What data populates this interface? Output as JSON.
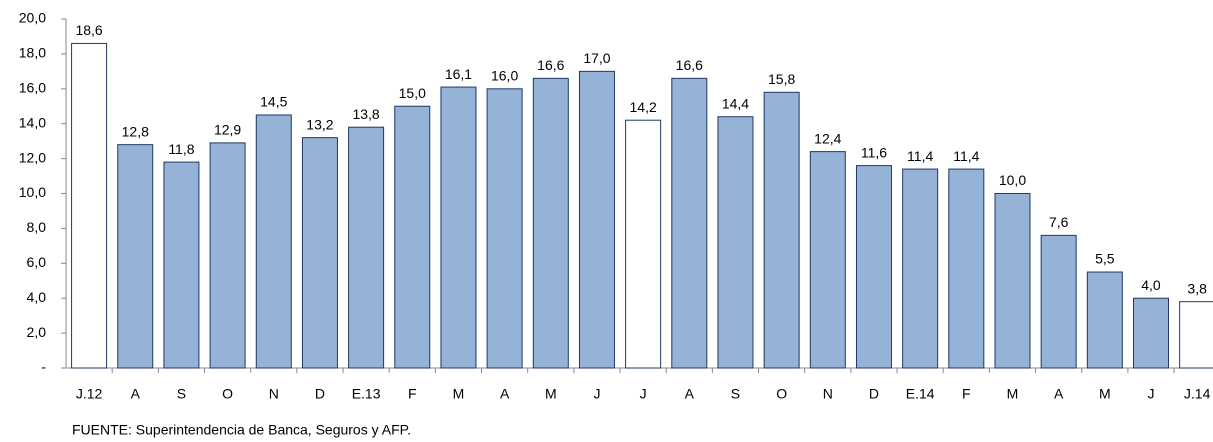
{
  "chart_data": {
    "type": "bar",
    "categories": [
      "J.12",
      "A",
      "S",
      "O",
      "N",
      "D",
      "E.13",
      "F",
      "M",
      "A",
      "M",
      "J",
      "J",
      "A",
      "S",
      "O",
      "N",
      "D",
      "E.14",
      "F",
      "M",
      "A",
      "M",
      "J",
      "J.14"
    ],
    "values": [
      18.6,
      12.8,
      11.8,
      12.9,
      14.5,
      13.2,
      13.8,
      15.0,
      16.1,
      16.0,
      16.6,
      17.0,
      14.2,
      16.6,
      14.4,
      15.8,
      12.4,
      11.6,
      11.4,
      11.4,
      10.0,
      7.6,
      5.5,
      4.0,
      3.8
    ],
    "value_labels": [
      "18,6",
      "12,8",
      "11,8",
      "12,9",
      "14,5",
      "13,2",
      "13,8",
      "15,0",
      "16,1",
      "16,0",
      "16,6",
      "17,0",
      "14,2",
      "16,6",
      "14,4",
      "15,8",
      "12,4",
      "11,6",
      "11,4",
      "11,4",
      "10,0",
      "7,6",
      "5,5",
      "4,0",
      "3,8"
    ],
    "colors": [
      "#ffffff",
      "#95b3d7",
      "#95b3d7",
      "#95b3d7",
      "#95b3d7",
      "#95b3d7",
      "#95b3d7",
      "#95b3d7",
      "#95b3d7",
      "#95b3d7",
      "#95b3d7",
      "#95b3d7",
      "#ffffff",
      "#95b3d7",
      "#95b3d7",
      "#95b3d7",
      "#95b3d7",
      "#95b3d7",
      "#95b3d7",
      "#95b3d7",
      "#95b3d7",
      "#95b3d7",
      "#95b3d7",
      "#95b3d7",
      "#ffffff"
    ],
    "edge_color": "#1f3864",
    "ylim": [
      0,
      20
    ],
    "yticks": [
      {
        "value": 0,
        "label": "-"
      },
      {
        "value": 2,
        "label": "2,0"
      },
      {
        "value": 4,
        "label": "4,0"
      },
      {
        "value": 6,
        "label": "6,0"
      },
      {
        "value": 8,
        "label": "8,0"
      },
      {
        "value": 10,
        "label": "10,0"
      },
      {
        "value": 12,
        "label": "12,0"
      },
      {
        "value": 14,
        "label": "14,0"
      },
      {
        "value": 16,
        "label": "16,0"
      },
      {
        "value": 18,
        "label": "18,0"
      },
      {
        "value": 20,
        "label": "20,0"
      }
    ],
    "source": "FUENTE: Superintendencia de Banca, Seguros y AFP."
  }
}
